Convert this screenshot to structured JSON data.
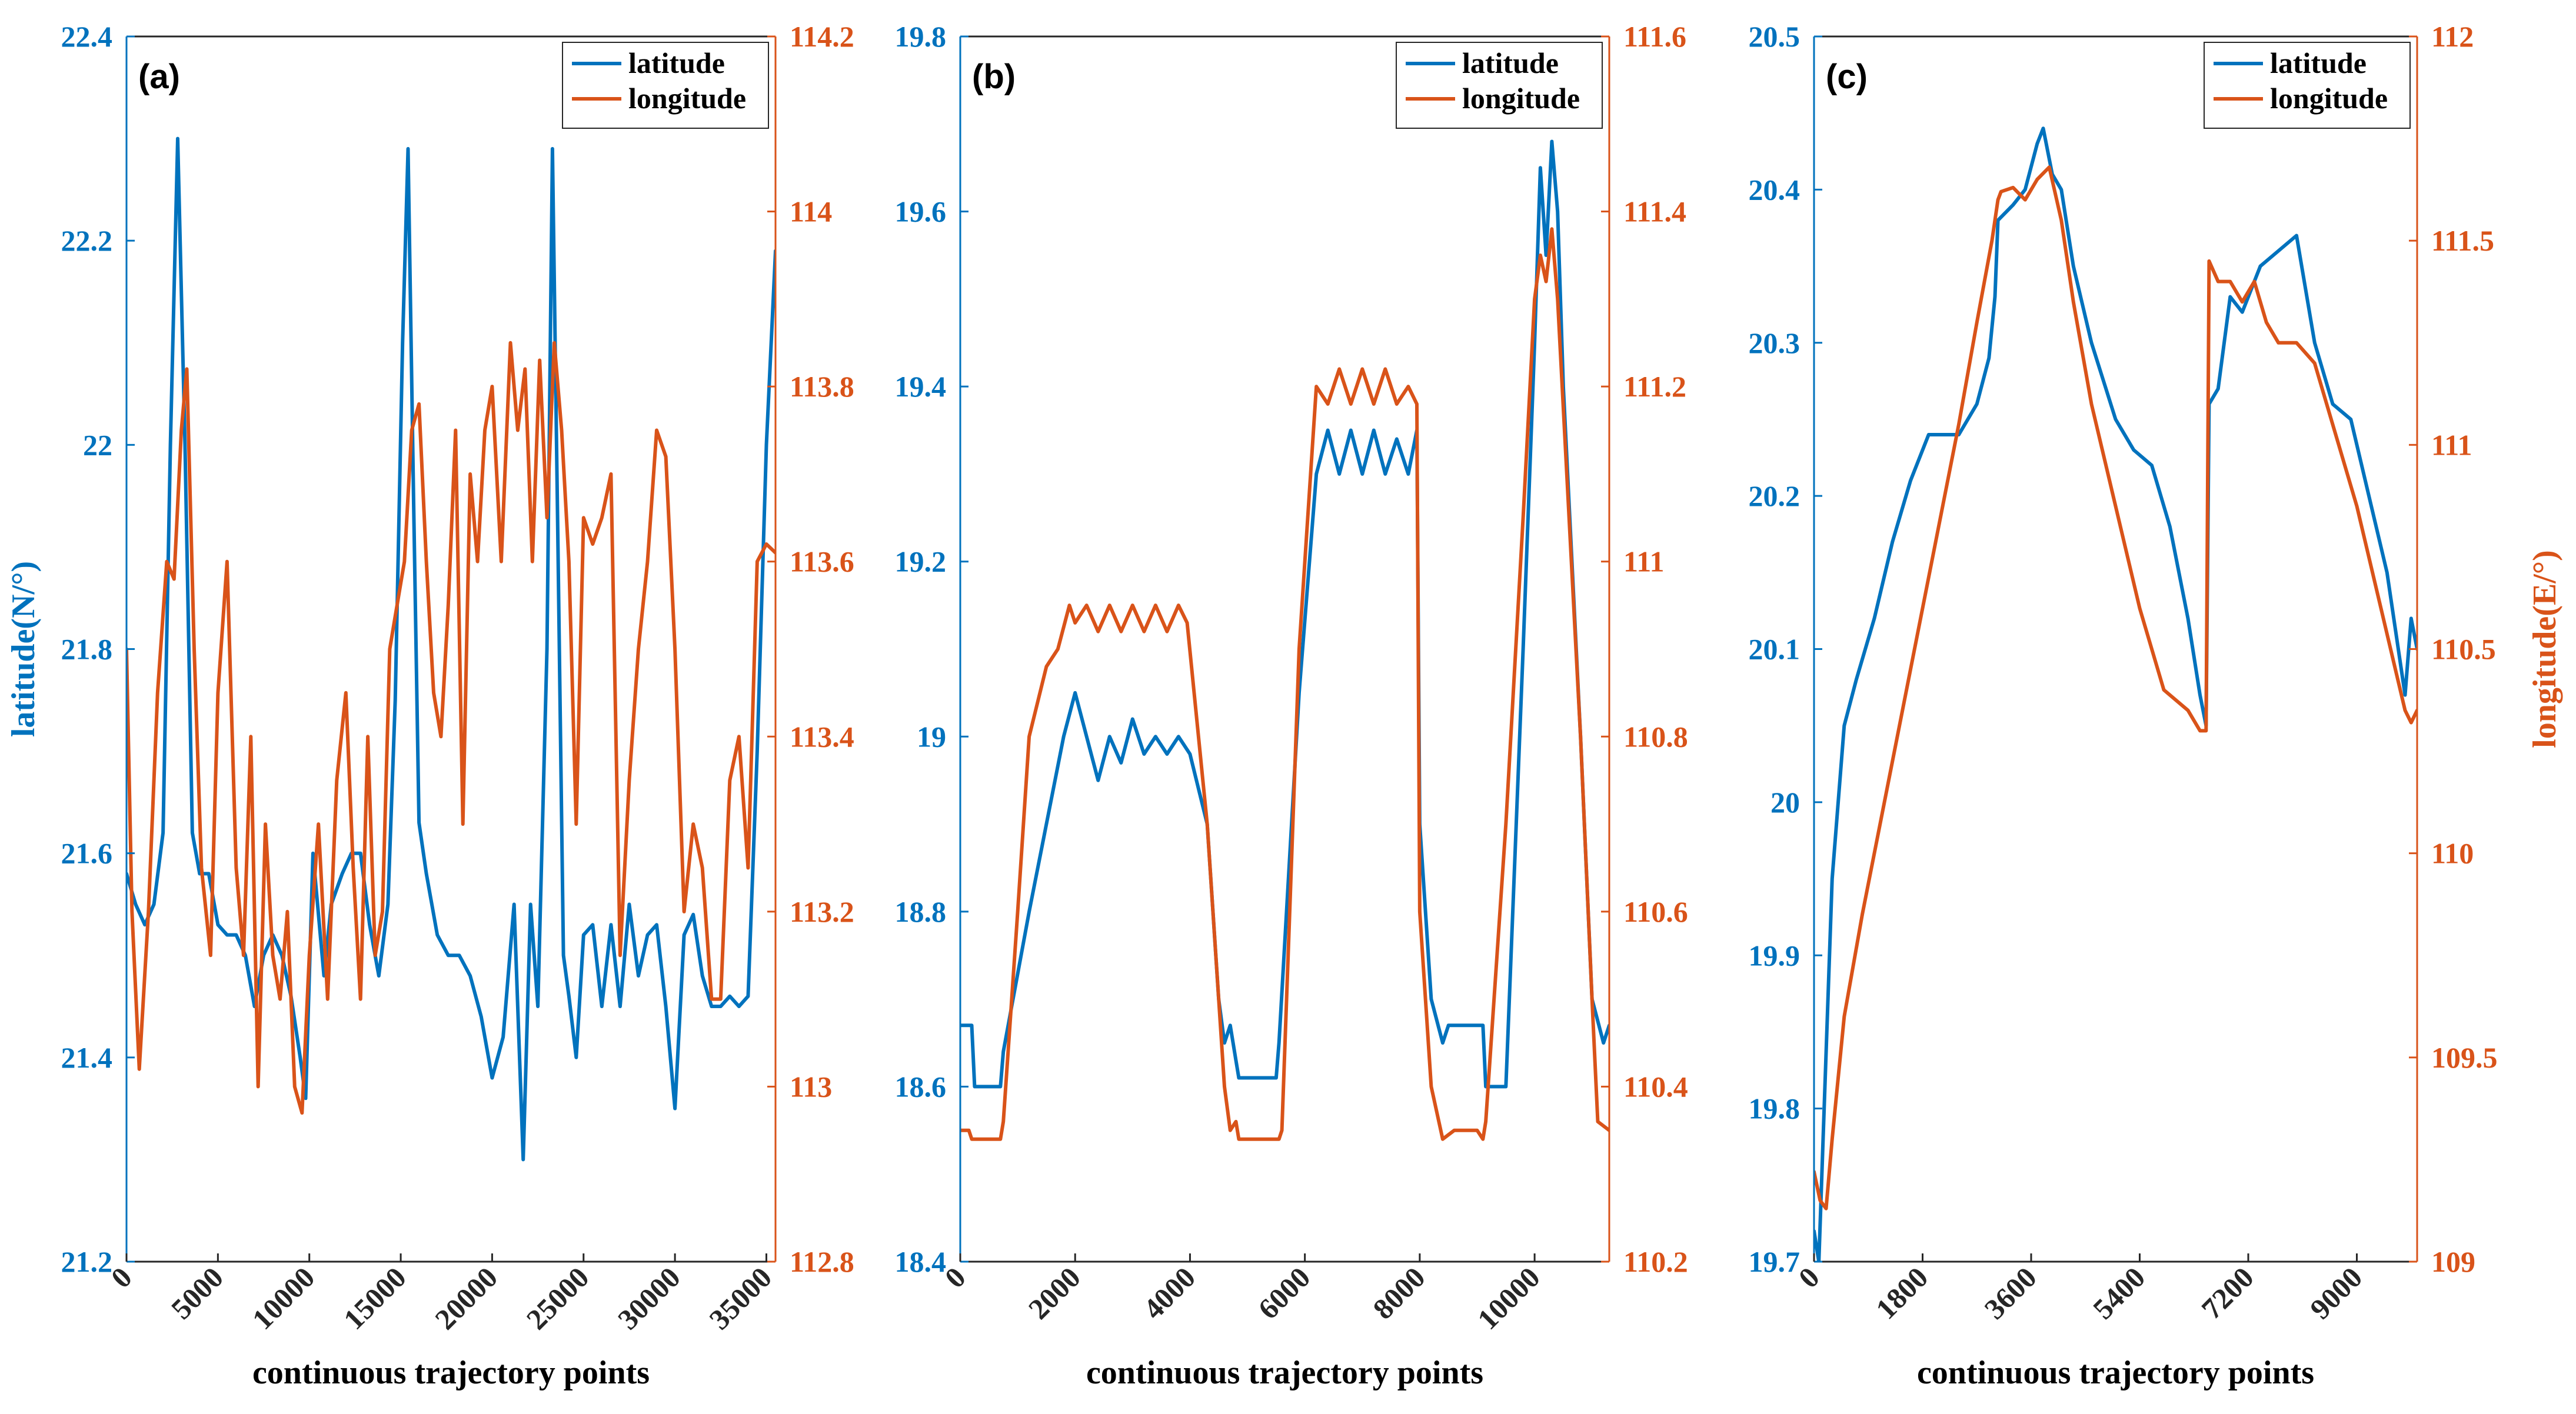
{
  "colors": {
    "latitude": "#0072BD",
    "longitude": "#D95319",
    "axis": "#262626"
  },
  "chart_data": [
    {
      "type": "line",
      "panel_label": "(a)",
      "xlabel": "continuous trajectory points",
      "ylabel": "latitude(N/°)",
      "ylabel_right": "",
      "xlim": [
        0,
        35500
      ],
      "ylim": [
        21.2,
        22.4
      ],
      "ylim_right": [
        112.8,
        114.2
      ],
      "x_ticks": [
        "0",
        "5000",
        "10000",
        "15000",
        "20000",
        "25000",
        "30000",
        "35000"
      ],
      "y_ticks": [
        "21.2",
        "21.4",
        "21.6",
        "21.8",
        "22",
        "22.2",
        "22.4"
      ],
      "y_ticks_right": [
        "112.8",
        "113",
        "113.2",
        "113.4",
        "113.6",
        "113.8",
        "114",
        "114.2"
      ],
      "legend": [
        "latitude",
        "longitude"
      ],
      "series": [
        {
          "name": "latitude",
          "axis": "left",
          "x": [
            0,
            500,
            1000,
            1500,
            2000,
            2400,
            2800,
            3200,
            3600,
            4000,
            4500,
            5000,
            5500,
            6000,
            6500,
            7000,
            7500,
            8000,
            8500,
            9000,
            9500,
            9800,
            10200,
            10800,
            11200,
            11800,
            12300,
            12800,
            13300,
            13800,
            14300,
            14700,
            15100,
            15400,
            15700,
            16000,
            16400,
            17000,
            17600,
            18200,
            18800,
            19400,
            20000,
            20600,
            21200,
            21700,
            22100,
            22500,
            23000,
            23300,
            23600,
            23900,
            24200,
            24600,
            25000,
            25500,
            26000,
            26500,
            27000,
            27500,
            28000,
            28500,
            29000,
            29500,
            30000,
            30500,
            31000,
            31500,
            32000,
            32500,
            33000,
            33500,
            34000,
            34500,
            35000,
            35500
          ],
          "values": [
            21.58,
            21.55,
            21.53,
            21.55,
            21.62,
            22.0,
            22.3,
            22.0,
            21.62,
            21.58,
            21.58,
            21.53,
            21.52,
            21.52,
            21.5,
            21.45,
            21.5,
            21.52,
            21.5,
            21.46,
            21.4,
            21.36,
            21.6,
            21.48,
            21.55,
            21.58,
            21.6,
            21.6,
            21.53,
            21.48,
            21.55,
            21.75,
            22.1,
            22.29,
            21.95,
            21.63,
            21.58,
            21.52,
            21.5,
            21.5,
            21.48,
            21.44,
            21.38,
            21.42,
            21.55,
            21.3,
            21.55,
            21.45,
            21.8,
            22.29,
            21.9,
            21.5,
            21.46,
            21.4,
            21.52,
            21.53,
            21.45,
            21.53,
            21.45,
            21.55,
            21.48,
            21.52,
            21.53,
            21.45,
            21.35,
            21.52,
            21.54,
            21.48,
            21.45,
            21.45,
            21.46,
            21.45,
            21.46,
            21.7,
            22.0,
            22.19
          ]
        },
        {
          "name": "longitude",
          "axis": "right",
          "x": [
            0,
            300,
            700,
            1200,
            1700,
            2200,
            2600,
            3000,
            3300,
            3700,
            4100,
            4600,
            5000,
            5500,
            6000,
            6400,
            6800,
            7200,
            7600,
            8000,
            8400,
            8800,
            9200,
            9600,
            10000,
            10500,
            11000,
            11500,
            12000,
            12400,
            12800,
            13200,
            13600,
            14000,
            14400,
            14800,
            15200,
            15600,
            16000,
            16400,
            16800,
            17200,
            17600,
            18000,
            18400,
            18800,
            19200,
            19600,
            20000,
            20500,
            21000,
            21400,
            21800,
            22200,
            22600,
            23000,
            23400,
            23800,
            24200,
            24600,
            25000,
            25500,
            26000,
            26500,
            27000,
            27500,
            28000,
            28500,
            29000,
            29500,
            30000,
            30500,
            31000,
            31500,
            32000,
            32500,
            33000,
            33500,
            34000,
            34500,
            35000,
            35500
          ],
          "values": [
            113.5,
            113.2,
            113.02,
            113.2,
            113.45,
            113.6,
            113.58,
            113.75,
            113.82,
            113.5,
            113.25,
            113.15,
            113.45,
            113.6,
            113.25,
            113.15,
            113.4,
            113.0,
            113.3,
            113.15,
            113.1,
            113.2,
            113.0,
            112.97,
            113.15,
            113.3,
            113.1,
            113.35,
            113.45,
            113.25,
            113.1,
            113.4,
            113.15,
            113.2,
            113.5,
            113.55,
            113.6,
            113.75,
            113.78,
            113.6,
            113.45,
            113.4,
            113.55,
            113.75,
            113.3,
            113.7,
            113.6,
            113.75,
            113.8,
            113.6,
            113.85,
            113.75,
            113.82,
            113.6,
            113.83,
            113.65,
            113.85,
            113.75,
            113.6,
            113.3,
            113.65,
            113.62,
            113.65,
            113.7,
            113.15,
            113.35,
            113.5,
            113.6,
            113.75,
            113.72,
            113.5,
            113.2,
            113.3,
            113.25,
            113.1,
            113.1,
            113.35,
            113.4,
            113.25,
            113.6,
            113.62,
            113.61
          ]
        }
      ]
    },
    {
      "type": "line",
      "panel_label": "(b)",
      "xlabel": "continuous trajectory points",
      "ylabel": "",
      "ylabel_right": "",
      "xlim": [
        0,
        11300
      ],
      "ylim": [
        18.4,
        19.8
      ],
      "ylim_right": [
        110.2,
        111.6
      ],
      "x_ticks": [
        "0",
        "2000",
        "4000",
        "6000",
        "8000",
        "10000"
      ],
      "y_ticks": [
        "18.4",
        "18.6",
        "18.8",
        "19",
        "19.2",
        "19.4",
        "19.6",
        "19.8"
      ],
      "y_ticks_right": [
        "110.2",
        "110.4",
        "110.6",
        "110.8",
        "111",
        "111.2",
        "111.4",
        "111.6"
      ],
      "legend": [
        "latitude",
        "longitude"
      ],
      "series": [
        {
          "name": "latitude",
          "axis": "left",
          "x": [
            0,
            200,
            250,
            700,
            750,
            1200,
            1500,
            1800,
            2000,
            2200,
            2400,
            2600,
            2800,
            3000,
            3200,
            3400,
            3600,
            3800,
            4000,
            4300,
            4500,
            4600,
            4700,
            4800,
            4850,
            5500,
            5550,
            5900,
            6200,
            6400,
            6600,
            6800,
            7000,
            7200,
            7400,
            7600,
            7800,
            7950,
            8000,
            8200,
            8400,
            8500,
            9100,
            9150,
            9500,
            9800,
            10000,
            10100,
            10200,
            10300,
            10400,
            10500,
            10800,
            11000,
            11200,
            11300
          ],
          "values": [
            18.67,
            18.67,
            18.6,
            18.6,
            18.64,
            18.8,
            18.9,
            19.0,
            19.05,
            19.0,
            18.95,
            19.0,
            18.97,
            19.02,
            18.98,
            19.0,
            18.98,
            19.0,
            18.98,
            18.9,
            18.7,
            18.65,
            18.67,
            18.63,
            18.61,
            18.61,
            18.65,
            19.05,
            19.3,
            19.35,
            19.3,
            19.35,
            19.3,
            19.35,
            19.3,
            19.34,
            19.3,
            19.35,
            18.9,
            18.7,
            18.65,
            18.67,
            18.67,
            18.6,
            18.6,
            19.1,
            19.45,
            19.65,
            19.55,
            19.68,
            19.6,
            19.4,
            19.0,
            18.7,
            18.65,
            18.67
          ]
        },
        {
          "name": "longitude",
          "axis": "right",
          "x": [
            0,
            150,
            200,
            700,
            750,
            1000,
            1200,
            1500,
            1700,
            1900,
            2000,
            2200,
            2400,
            2600,
            2800,
            3000,
            3200,
            3400,
            3600,
            3800,
            3950,
            4300,
            4500,
            4600,
            4700,
            4800,
            4850,
            5550,
            5600,
            5900,
            6100,
            6200,
            6400,
            6600,
            6800,
            7000,
            7200,
            7400,
            7600,
            7800,
            7950,
            8000,
            8200,
            8400,
            8600,
            9000,
            9100,
            9150,
            9500,
            9800,
            10000,
            10100,
            10200,
            10300,
            10400,
            10800,
            11000,
            11100,
            11300
          ],
          "values": [
            110.35,
            110.35,
            110.34,
            110.34,
            110.36,
            110.6,
            110.8,
            110.88,
            110.9,
            110.95,
            110.93,
            110.95,
            110.92,
            110.95,
            110.92,
            110.95,
            110.92,
            110.95,
            110.92,
            110.95,
            110.93,
            110.7,
            110.5,
            110.4,
            110.35,
            110.36,
            110.34,
            110.34,
            110.35,
            110.9,
            111.1,
            111.2,
            111.18,
            111.22,
            111.18,
            111.22,
            111.18,
            111.22,
            111.18,
            111.2,
            111.18,
            110.6,
            110.4,
            110.34,
            110.35,
            110.35,
            110.34,
            110.36,
            110.7,
            111.05,
            111.3,
            111.35,
            111.32,
            111.38,
            111.3,
            110.8,
            110.5,
            110.36,
            110.35
          ]
        }
      ]
    },
    {
      "type": "line",
      "panel_label": "(c)",
      "xlabel": "continuous trajectory points",
      "ylabel": "",
      "ylabel_right": "longitude(E/°)",
      "xlim": [
        0,
        10000
      ],
      "ylim": [
        19.7,
        20.5
      ],
      "ylim_right": [
        109,
        112
      ],
      "x_ticks": [
        "0",
        "1800",
        "3600",
        "5400",
        "7200",
        "9000"
      ],
      "y_ticks": [
        "19.7",
        "19.8",
        "19.9",
        "20",
        "20.1",
        "20.2",
        "20.3",
        "20.4",
        "20.5"
      ],
      "y_ticks_right": [
        "109",
        "109.5",
        "110",
        "110.5",
        "111",
        "111.5",
        "112"
      ],
      "legend": [
        "latitude",
        "longitude"
      ],
      "series": [
        {
          "name": "latitude",
          "axis": "left",
          "x": [
            0,
            80,
            150,
            300,
            500,
            700,
            1000,
            1300,
            1600,
            1900,
            2100,
            2400,
            2700,
            2900,
            3000,
            3050,
            3300,
            3500,
            3700,
            3800,
            3950,
            4100,
            4300,
            4600,
            5000,
            5300,
            5600,
            5900,
            6200,
            6400,
            6500,
            6550,
            6700,
            6900,
            7100,
            7400,
            7700,
            8000,
            8300,
            8600,
            8900,
            9200,
            9500,
            9800,
            9900,
            10000
          ],
          "values": [
            19.72,
            19.7,
            19.78,
            19.95,
            20.05,
            20.08,
            20.12,
            20.17,
            20.21,
            20.24,
            20.24,
            20.24,
            20.26,
            20.29,
            20.33,
            20.38,
            20.39,
            20.4,
            20.43,
            20.44,
            20.41,
            20.4,
            20.35,
            20.3,
            20.25,
            20.23,
            20.22,
            20.18,
            20.12,
            20.07,
            20.05,
            20.26,
            20.27,
            20.33,
            20.32,
            20.35,
            20.36,
            20.37,
            20.3,
            20.26,
            20.25,
            20.2,
            20.15,
            20.07,
            20.12,
            20.1
          ]
        },
        {
          "name": "longitude",
          "axis": "right",
          "x": [
            0,
            100,
            200,
            300,
            500,
            800,
            1200,
            1600,
            2000,
            2400,
            2700,
            2950,
            3050,
            3100,
            3300,
            3500,
            3700,
            3900,
            4100,
            4300,
            4600,
            5000,
            5400,
            5800,
            6200,
            6400,
            6500,
            6550,
            6700,
            6900,
            7100,
            7300,
            7500,
            7700,
            8000,
            8300,
            8600,
            9000,
            9400,
            9800,
            9900,
            10000
          ],
          "values": [
            109.22,
            109.15,
            109.13,
            109.3,
            109.6,
            109.85,
            110.15,
            110.45,
            110.75,
            111.05,
            111.3,
            111.5,
            111.6,
            111.62,
            111.63,
            111.6,
            111.65,
            111.68,
            111.55,
            111.35,
            111.1,
            110.85,
            110.6,
            110.4,
            110.35,
            110.3,
            110.3,
            111.45,
            111.4,
            111.4,
            111.35,
            111.4,
            111.3,
            111.25,
            111.25,
            111.2,
            111.05,
            110.85,
            110.6,
            110.35,
            110.32,
            110.35
          ]
        }
      ]
    }
  ]
}
